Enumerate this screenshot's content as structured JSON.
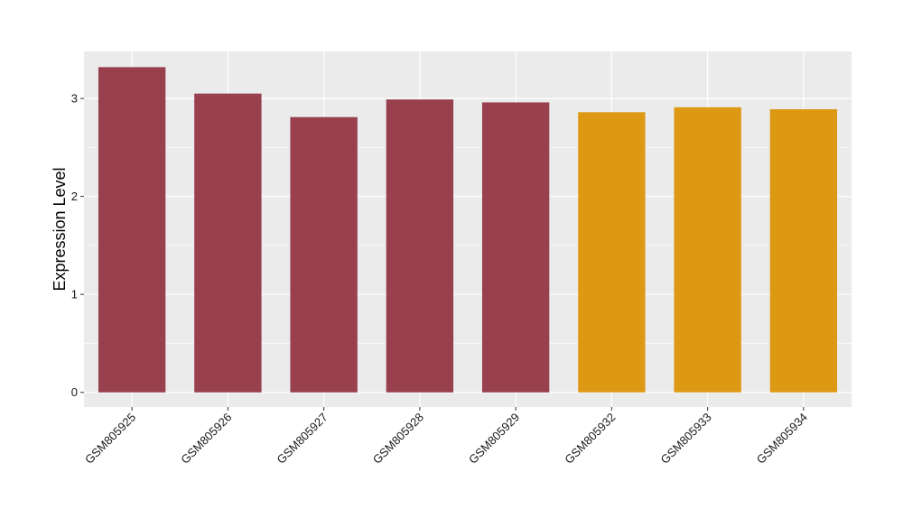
{
  "chart_data": {
    "type": "bar",
    "title": "",
    "xlabel": "",
    "ylabel": "Expression Level",
    "categories": [
      "GSM805925",
      "GSM805926",
      "GSM805927",
      "GSM805928",
      "GSM805929",
      "GSM805932",
      "GSM805933",
      "GSM805934"
    ],
    "values": [
      3.32,
      3.05,
      2.81,
      2.99,
      2.96,
      2.86,
      2.91,
      2.89
    ],
    "bar_colors": [
      "#99404F",
      "#99404F",
      "#99404F",
      "#99404F",
      "#99404F",
      "#DD9914",
      "#DD9914",
      "#DD9914"
    ],
    "ylim": [
      -0.15,
      3.48
    ],
    "yticks": [
      0,
      1,
      2,
      3
    ],
    "ytick_labels": [
      "0",
      "1",
      "2",
      "3"
    ],
    "grid": true,
    "legend": "none",
    "panel_background": "#EBEBEB",
    "grid_color": "#FFFFFF"
  }
}
